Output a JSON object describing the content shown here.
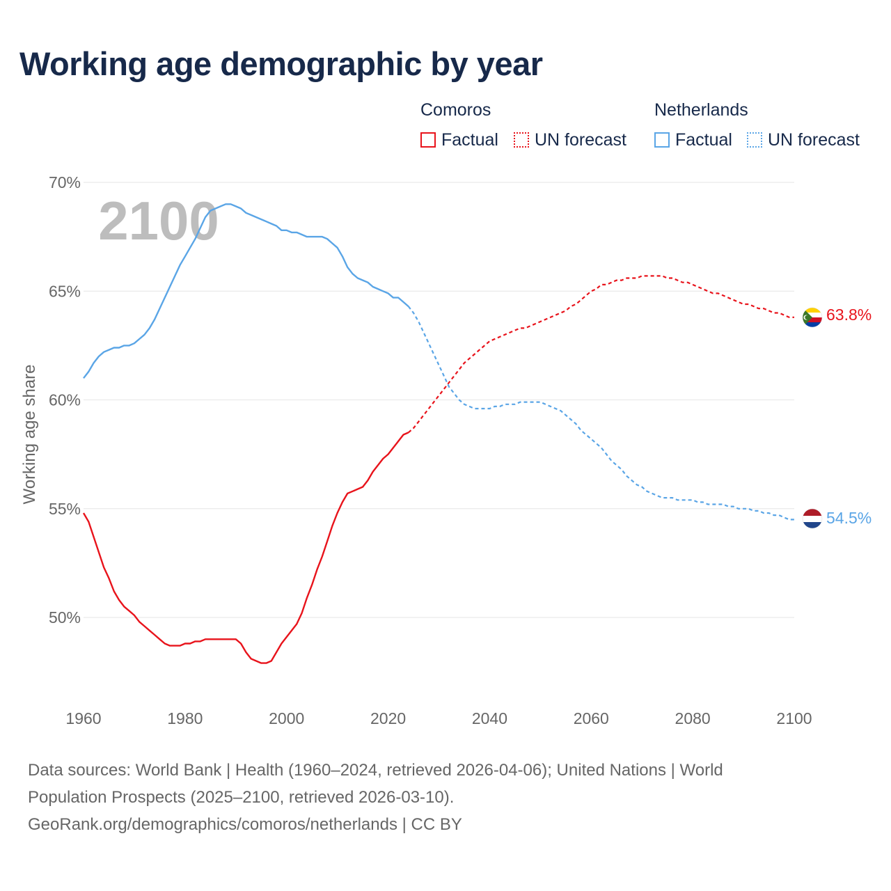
{
  "title": "Working age demographic by year",
  "legend": {
    "groups": [
      {
        "name": "Comoros",
        "color": "#e8131b",
        "factual_label": "Factual",
        "forecast_label": "UN forecast"
      },
      {
        "name": "Netherlands",
        "color": "#5aa5e6",
        "factual_label": "Factual",
        "forecast_label": "UN forecast"
      }
    ]
  },
  "footer": {
    "line1": "Data sources: World Bank | Health (1960–2024, retrieved 2026-04-06); United Nations | World",
    "line2": "Population Prospects (2025–2100, retrieved 2026-03-10).",
    "line3": "GeoRank.org/demographics/comoros/netherlands | CC BY"
  },
  "chart_data": {
    "type": "line",
    "title": "Working age demographic by year",
    "xlabel": "",
    "ylabel": "Working age share",
    "year_watermark": "2100",
    "xlim": [
      1960,
      2100
    ],
    "ylim": [
      46,
      71
    ],
    "x_ticks": [
      "1960",
      "1980",
      "2000",
      "2020",
      "2040",
      "2060",
      "2080",
      "2100"
    ],
    "y_ticks": [
      {
        "value": 50,
        "label": "50%"
      },
      {
        "value": 55,
        "label": "55%"
      },
      {
        "value": 60,
        "label": "60%"
      },
      {
        "value": 65,
        "label": "65%"
      },
      {
        "value": 70,
        "label": "70%"
      }
    ],
    "grid": true,
    "forecast_start_year": 2024,
    "series": [
      {
        "name": "Comoros",
        "color": "#e8131b",
        "end_label": "63.8%",
        "flag": "comoros",
        "points": [
          [
            1960,
            54.8
          ],
          [
            1961,
            54.4
          ],
          [
            1962,
            53.7
          ],
          [
            1963,
            53.0
          ],
          [
            1964,
            52.3
          ],
          [
            1965,
            51.8
          ],
          [
            1966,
            51.2
          ],
          [
            1967,
            50.8
          ],
          [
            1968,
            50.5
          ],
          [
            1969,
            50.3
          ],
          [
            1970,
            50.1
          ],
          [
            1971,
            49.8
          ],
          [
            1972,
            49.6
          ],
          [
            1973,
            49.4
          ],
          [
            1974,
            49.2
          ],
          [
            1975,
            49.0
          ],
          [
            1976,
            48.8
          ],
          [
            1977,
            48.7
          ],
          [
            1978,
            48.7
          ],
          [
            1979,
            48.7
          ],
          [
            1980,
            48.8
          ],
          [
            1981,
            48.8
          ],
          [
            1982,
            48.9
          ],
          [
            1983,
            48.9
          ],
          [
            1984,
            49.0
          ],
          [
            1985,
            49.0
          ],
          [
            1986,
            49.0
          ],
          [
            1987,
            49.0
          ],
          [
            1988,
            49.0
          ],
          [
            1989,
            49.0
          ],
          [
            1990,
            49.0
          ],
          [
            1991,
            48.8
          ],
          [
            1992,
            48.4
          ],
          [
            1993,
            48.1
          ],
          [
            1994,
            48.0
          ],
          [
            1995,
            47.9
          ],
          [
            1996,
            47.9
          ],
          [
            1997,
            48.0
          ],
          [
            1998,
            48.4
          ],
          [
            1999,
            48.8
          ],
          [
            2000,
            49.1
          ],
          [
            2001,
            49.4
          ],
          [
            2002,
            49.7
          ],
          [
            2003,
            50.2
          ],
          [
            2004,
            50.9
          ],
          [
            2005,
            51.5
          ],
          [
            2006,
            52.2
          ],
          [
            2007,
            52.8
          ],
          [
            2008,
            53.5
          ],
          [
            2009,
            54.2
          ],
          [
            2010,
            54.8
          ],
          [
            2011,
            55.3
          ],
          [
            2012,
            55.7
          ],
          [
            2013,
            55.8
          ],
          [
            2014,
            55.9
          ],
          [
            2015,
            56.0
          ],
          [
            2016,
            56.3
          ],
          [
            2017,
            56.7
          ],
          [
            2018,
            57.0
          ],
          [
            2019,
            57.3
          ],
          [
            2020,
            57.5
          ],
          [
            2021,
            57.8
          ],
          [
            2022,
            58.1
          ],
          [
            2023,
            58.4
          ],
          [
            2024,
            58.5
          ],
          [
            2025,
            58.7
          ],
          [
            2026,
            59.0
          ],
          [
            2027,
            59.3
          ],
          [
            2028,
            59.6
          ],
          [
            2029,
            59.9
          ],
          [
            2030,
            60.2
          ],
          [
            2031,
            60.5
          ],
          [
            2032,
            60.8
          ],
          [
            2033,
            61.1
          ],
          [
            2034,
            61.4
          ],
          [
            2035,
            61.7
          ],
          [
            2036,
            61.9
          ],
          [
            2037,
            62.1
          ],
          [
            2038,
            62.3
          ],
          [
            2039,
            62.5
          ],
          [
            2040,
            62.7
          ],
          [
            2041,
            62.8
          ],
          [
            2042,
            62.9
          ],
          [
            2043,
            63.0
          ],
          [
            2044,
            63.1
          ],
          [
            2045,
            63.2
          ],
          [
            2046,
            63.3
          ],
          [
            2047,
            63.3
          ],
          [
            2048,
            63.4
          ],
          [
            2049,
            63.5
          ],
          [
            2050,
            63.6
          ],
          [
            2051,
            63.7
          ],
          [
            2052,
            63.8
          ],
          [
            2053,
            63.9
          ],
          [
            2054,
            64.0
          ],
          [
            2055,
            64.1
          ],
          [
            2056,
            64.3
          ],
          [
            2057,
            64.4
          ],
          [
            2058,
            64.6
          ],
          [
            2059,
            64.8
          ],
          [
            2060,
            65.0
          ],
          [
            2061,
            65.1
          ],
          [
            2062,
            65.3
          ],
          [
            2063,
            65.3
          ],
          [
            2064,
            65.4
          ],
          [
            2065,
            65.5
          ],
          [
            2066,
            65.5
          ],
          [
            2067,
            65.6
          ],
          [
            2068,
            65.6
          ],
          [
            2069,
            65.6
          ],
          [
            2070,
            65.7
          ],
          [
            2071,
            65.7
          ],
          [
            2072,
            65.7
          ],
          [
            2073,
            65.7
          ],
          [
            2074,
            65.7
          ],
          [
            2075,
            65.6
          ],
          [
            2076,
            65.6
          ],
          [
            2077,
            65.5
          ],
          [
            2078,
            65.4
          ],
          [
            2079,
            65.4
          ],
          [
            2080,
            65.3
          ],
          [
            2081,
            65.2
          ],
          [
            2082,
            65.1
          ],
          [
            2083,
            65.0
          ],
          [
            2084,
            64.9
          ],
          [
            2085,
            64.9
          ],
          [
            2086,
            64.8
          ],
          [
            2087,
            64.7
          ],
          [
            2088,
            64.6
          ],
          [
            2089,
            64.5
          ],
          [
            2090,
            64.4
          ],
          [
            2091,
            64.4
          ],
          [
            2092,
            64.3
          ],
          [
            2093,
            64.2
          ],
          [
            2094,
            64.2
          ],
          [
            2095,
            64.1
          ],
          [
            2096,
            64.0
          ],
          [
            2097,
            64.0
          ],
          [
            2098,
            63.9
          ],
          [
            2099,
            63.8
          ],
          [
            2100,
            63.8
          ]
        ]
      },
      {
        "name": "Netherlands",
        "color": "#5aa5e6",
        "end_label": "54.5%",
        "flag": "netherlands",
        "points": [
          [
            1960,
            61.0
          ],
          [
            1961,
            61.3
          ],
          [
            1962,
            61.7
          ],
          [
            1963,
            62.0
          ],
          [
            1964,
            62.2
          ],
          [
            1965,
            62.3
          ],
          [
            1966,
            62.4
          ],
          [
            1967,
            62.4
          ],
          [
            1968,
            62.5
          ],
          [
            1969,
            62.5
          ],
          [
            1970,
            62.6
          ],
          [
            1971,
            62.8
          ],
          [
            1972,
            63.0
          ],
          [
            1973,
            63.3
          ],
          [
            1974,
            63.7
          ],
          [
            1975,
            64.2
          ],
          [
            1976,
            64.7
          ],
          [
            1977,
            65.2
          ],
          [
            1978,
            65.7
          ],
          [
            1979,
            66.2
          ],
          [
            1980,
            66.6
          ],
          [
            1981,
            67.0
          ],
          [
            1982,
            67.4
          ],
          [
            1983,
            67.9
          ],
          [
            1984,
            68.4
          ],
          [
            1985,
            68.7
          ],
          [
            1986,
            68.8
          ],
          [
            1987,
            68.9
          ],
          [
            1988,
            69.0
          ],
          [
            1989,
            69.0
          ],
          [
            1990,
            68.9
          ],
          [
            1991,
            68.8
          ],
          [
            1992,
            68.6
          ],
          [
            1993,
            68.5
          ],
          [
            1994,
            68.4
          ],
          [
            1995,
            68.3
          ],
          [
            1996,
            68.2
          ],
          [
            1997,
            68.1
          ],
          [
            1998,
            68.0
          ],
          [
            1999,
            67.8
          ],
          [
            2000,
            67.8
          ],
          [
            2001,
            67.7
          ],
          [
            2002,
            67.7
          ],
          [
            2003,
            67.6
          ],
          [
            2004,
            67.5
          ],
          [
            2005,
            67.5
          ],
          [
            2006,
            67.5
          ],
          [
            2007,
            67.5
          ],
          [
            2008,
            67.4
          ],
          [
            2009,
            67.2
          ],
          [
            2010,
            67.0
          ],
          [
            2011,
            66.6
          ],
          [
            2012,
            66.1
          ],
          [
            2013,
            65.8
          ],
          [
            2014,
            65.6
          ],
          [
            2015,
            65.5
          ],
          [
            2016,
            65.4
          ],
          [
            2017,
            65.2
          ],
          [
            2018,
            65.1
          ],
          [
            2019,
            65.0
          ],
          [
            2020,
            64.9
          ],
          [
            2021,
            64.7
          ],
          [
            2022,
            64.7
          ],
          [
            2023,
            64.5
          ],
          [
            2024,
            64.3
          ],
          [
            2025,
            64.0
          ],
          [
            2026,
            63.6
          ],
          [
            2027,
            63.1
          ],
          [
            2028,
            62.6
          ],
          [
            2029,
            62.1
          ],
          [
            2030,
            61.6
          ],
          [
            2031,
            61.1
          ],
          [
            2032,
            60.6
          ],
          [
            2033,
            60.3
          ],
          [
            2034,
            60.0
          ],
          [
            2035,
            59.8
          ],
          [
            2036,
            59.7
          ],
          [
            2037,
            59.6
          ],
          [
            2038,
            59.6
          ],
          [
            2039,
            59.6
          ],
          [
            2040,
            59.6
          ],
          [
            2041,
            59.7
          ],
          [
            2042,
            59.7
          ],
          [
            2043,
            59.8
          ],
          [
            2044,
            59.8
          ],
          [
            2045,
            59.8
          ],
          [
            2046,
            59.9
          ],
          [
            2047,
            59.9
          ],
          [
            2048,
            59.9
          ],
          [
            2049,
            59.9
          ],
          [
            2050,
            59.9
          ],
          [
            2051,
            59.8
          ],
          [
            2052,
            59.7
          ],
          [
            2053,
            59.6
          ],
          [
            2054,
            59.5
          ],
          [
            2055,
            59.3
          ],
          [
            2056,
            59.1
          ],
          [
            2057,
            58.9
          ],
          [
            2058,
            58.6
          ],
          [
            2059,
            58.4
          ],
          [
            2060,
            58.2
          ],
          [
            2061,
            58.0
          ],
          [
            2062,
            57.8
          ],
          [
            2063,
            57.5
          ],
          [
            2064,
            57.2
          ],
          [
            2065,
            57.0
          ],
          [
            2066,
            56.8
          ],
          [
            2067,
            56.5
          ],
          [
            2068,
            56.3
          ],
          [
            2069,
            56.1
          ],
          [
            2070,
            56.0
          ],
          [
            2071,
            55.8
          ],
          [
            2072,
            55.7
          ],
          [
            2073,
            55.6
          ],
          [
            2074,
            55.5
          ],
          [
            2075,
            55.5
          ],
          [
            2076,
            55.5
          ],
          [
            2077,
            55.4
          ],
          [
            2078,
            55.4
          ],
          [
            2079,
            55.4
          ],
          [
            2080,
            55.4
          ],
          [
            2081,
            55.3
          ],
          [
            2082,
            55.3
          ],
          [
            2083,
            55.2
          ],
          [
            2084,
            55.2
          ],
          [
            2085,
            55.2
          ],
          [
            2086,
            55.2
          ],
          [
            2087,
            55.1
          ],
          [
            2088,
            55.1
          ],
          [
            2089,
            55.0
          ],
          [
            2090,
            55.0
          ],
          [
            2091,
            55.0
          ],
          [
            2092,
            54.9
          ],
          [
            2093,
            54.9
          ],
          [
            2094,
            54.8
          ],
          [
            2095,
            54.8
          ],
          [
            2096,
            54.7
          ],
          [
            2097,
            54.7
          ],
          [
            2098,
            54.6
          ],
          [
            2099,
            54.5
          ],
          [
            2100,
            54.5
          ]
        ]
      }
    ]
  }
}
